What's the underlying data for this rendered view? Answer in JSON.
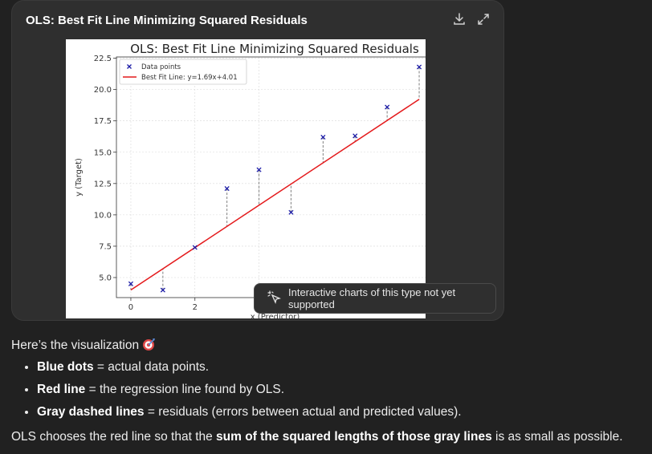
{
  "card": {
    "title": "OLS: Best Fit Line Minimizing Squared Residuals",
    "download_icon": "download-icon",
    "expand_icon": "expand-icon"
  },
  "colors": {
    "background": "#212121",
    "card": "#2f2f2f",
    "points": "#1a1aa6",
    "fit_line": "#e41a1c",
    "residuals": "#7f7f7f"
  },
  "chart_data": {
    "type": "scatter",
    "title": "OLS: Best Fit Line Minimizing Squared Residuals",
    "xlabel": "x (Predictor)",
    "ylabel": "y (Target)",
    "x": [
      0,
      1,
      2,
      3,
      4,
      5,
      6,
      7,
      8,
      9
    ],
    "y": [
      4.5,
      4.0,
      7.4,
      12.1,
      13.6,
      10.2,
      16.2,
      16.3,
      18.6,
      21.8
    ],
    "fit": {
      "slope": 1.69,
      "intercept": 4.01
    },
    "series": [
      {
        "name": "Data points",
        "marker": "x"
      },
      {
        "name": "Best Fit Line: y=1.69x+4.01",
        "line": "solid"
      }
    ],
    "y_ticks": [
      "5.0",
      "7.5",
      "10.0",
      "12.5",
      "15.0",
      "17.5",
      "20.0",
      "22.5"
    ],
    "x_ticks": [
      "0",
      "2",
      "4"
    ],
    "xlim": [
      -0.45,
      9.45
    ],
    "ylim": [
      3.4,
      22.6
    ],
    "grid": true,
    "legend": "top-left"
  },
  "overlay": {
    "label": "Interactive charts of this type not yet supported",
    "icon": "sparkle-cursor-icon"
  },
  "message": {
    "intro": "Here’s the visualization",
    "intro_icon": "dart-target-icon",
    "bullets": [
      {
        "bold": "Blue dots",
        "text": " = actual data points."
      },
      {
        "bold": "Red line",
        "text": " = the regression line found by OLS."
      },
      {
        "bold": "Gray dashed lines",
        "text": " = residuals (errors between actual and predicted values)."
      }
    ],
    "closing_pre": "OLS chooses the red line so that the ",
    "closing_bold": "sum of the squared lengths of those gray lines",
    "closing_post": " is as small as possible."
  }
}
